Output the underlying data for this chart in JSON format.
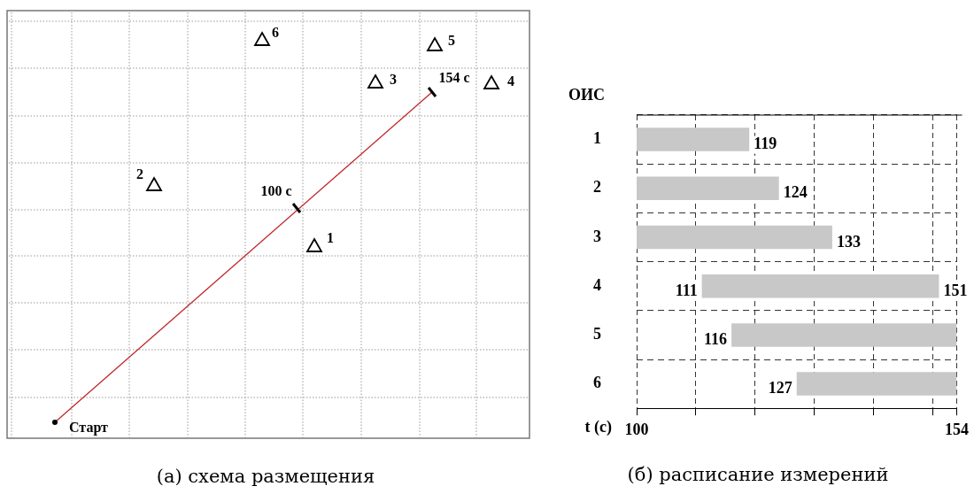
{
  "chart_data": [
    {
      "type": "other",
      "title": "(а) схема размещения",
      "annotations": [
        "Старт",
        "100 с",
        "154 с",
        "1",
        "2",
        "3",
        "4",
        "5",
        "6"
      ]
    },
    {
      "type": "bar",
      "orientation": "horizontal",
      "title": "(б) расписание измерений",
      "xlabel": "t (с)",
      "ylabel": "ОИС",
      "categories": [
        "1",
        "2",
        "3",
        "4",
        "5",
        "6"
      ],
      "base": [
        100,
        100,
        100,
        111,
        116,
        127
      ],
      "values": [
        19,
        24,
        33,
        40,
        38,
        27
      ],
      "color": "#c8c8c8",
      "xlim": [
        100,
        154
      ],
      "xticks": [
        100,
        {
          "value": 110,
          "label": null
        },
        {
          "value": 120,
          "label": null
        },
        {
          "value": 130,
          "label": null
        },
        {
          "value": 140,
          "label": null
        },
        {
          "value": 150,
          "label": null
        },
        154
      ],
      "grid": true,
      "legend": false,
      "annotations": [
        {
          "text": "119",
          "x": 119,
          "y": "1"
        },
        {
          "text": "124",
          "x": 124,
          "y": "2"
        },
        {
          "text": "133",
          "x": 133,
          "y": "3"
        },
        {
          "text": "111",
          "x": 111,
          "y": "4"
        },
        {
          "text": "151",
          "x": 151,
          "y": "4"
        },
        {
          "text": "116",
          "x": 116,
          "y": "5"
        },
        {
          "text": "127",
          "x": 127,
          "y": "6"
        }
      ]
    }
  ]
}
